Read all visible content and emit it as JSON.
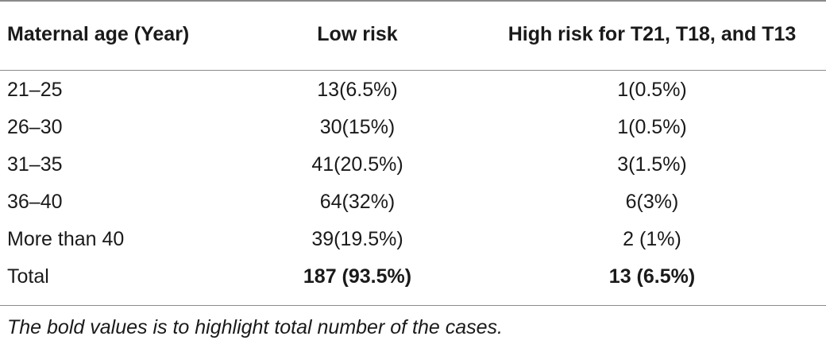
{
  "table": {
    "headers": [
      "Maternal age (Year)",
      "Low risk",
      "High risk for T21, T18, and T13"
    ],
    "rows": [
      {
        "age": "21–25",
        "low": "13(6.5%)",
        "high": "1(0.5%)"
      },
      {
        "age": "26–30",
        "low": "30(15%)",
        "high": "1(0.5%)"
      },
      {
        "age": "31–35",
        "low": "41(20.5%)",
        "high": "3(1.5%)"
      },
      {
        "age": "36–40",
        "low": "64(32%)",
        "high": "6(3%)"
      },
      {
        "age": "More than 40",
        "low": "39(19.5%)",
        "high": "2 (1%)"
      },
      {
        "age": "Total",
        "low": "187 (93.5%)",
        "high": "13 (6.5%)"
      }
    ],
    "footnote": "The bold values is to highlight total number of the cases."
  }
}
